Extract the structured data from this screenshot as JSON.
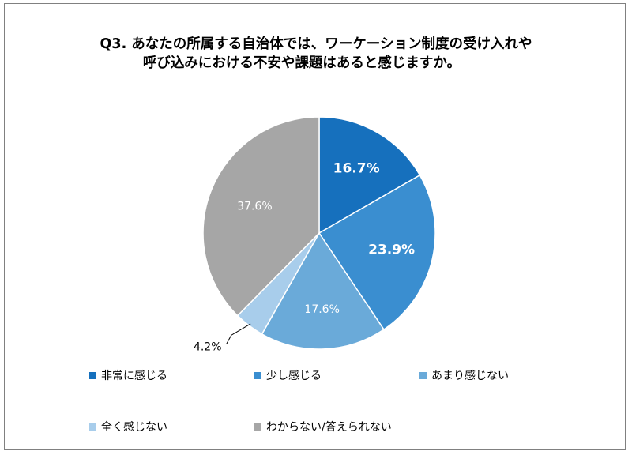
{
  "chart_data": {
    "type": "pie",
    "title_lines": [
      "Q3.  あなたの所属する自治体では、ワーケーション制度の受け入れや",
      "呼び込みにおける不安や課題はあると感じますか。"
    ],
    "categories": [
      "非常に感じる",
      "少し感じる",
      "あまり感じない",
      "全く感じない",
      "わからない/答えられない"
    ],
    "values": [
      16.7,
      23.9,
      17.6,
      4.2,
      37.6
    ],
    "labels": [
      "16.7%",
      "23.9%",
      "17.6%",
      "4.2%",
      "37.6%"
    ],
    "colors": [
      "#1670BD",
      "#3A8ED0",
      "#6AAAD9",
      "#A8CDEB",
      "#A6A6A6"
    ],
    "label_colors": [
      "#FFFFFF",
      "#FFFFFF",
      "#FFFFFF",
      "#000000",
      "#FFFFFF"
    ],
    "label_bold": [
      true,
      true,
      false,
      false,
      false
    ],
    "start": "12 o'clock",
    "direction": "clockwise",
    "legend_position": "bottom"
  }
}
